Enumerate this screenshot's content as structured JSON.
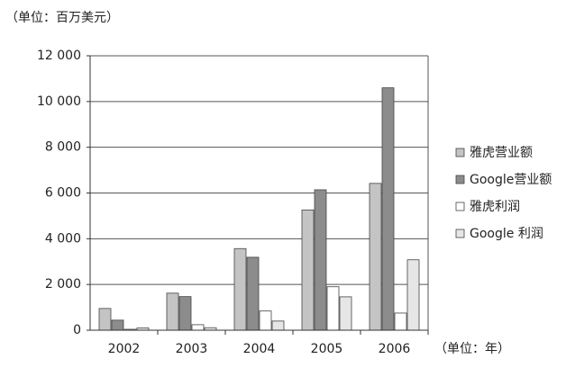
{
  "chart_data": {
    "type": "bar",
    "y_unit": "（单位：百万美元）",
    "x_unit": "（单位：年）",
    "categories": [
      "2002",
      "2003",
      "2004",
      "2005",
      "2006"
    ],
    "series": [
      {
        "name": "雅虎营业额",
        "color": "#c4c4c4",
        "values": [
          950,
          1620,
          3570,
          5260,
          6420
        ]
      },
      {
        "name": "Google营业额",
        "color": "#8c8c8c",
        "values": [
          440,
          1470,
          3190,
          6140,
          10600
        ]
      },
      {
        "name": "雅虎利润",
        "color": "#ffffff",
        "values": [
          40,
          240,
          840,
          1900,
          750
        ]
      },
      {
        "name": "Google 利润",
        "color": "#e6e6e6",
        "values": [
          100,
          110,
          400,
          1460,
          3080
        ]
      }
    ],
    "ylim": [
      0,
      12000
    ],
    "yticks": [
      0,
      {
        "value": 2000,
        "label": "2 000"
      },
      {
        "value": 4000,
        "label": "4 000"
      },
      {
        "value": 6000,
        "label": "6 000"
      },
      {
        "value": 8000,
        "label": "8 000"
      },
      {
        "value": 10000,
        "label": "10 000"
      },
      {
        "value": 12000,
        "label": "12 000"
      }
    ],
    "grid": true,
    "legend": "right"
  }
}
